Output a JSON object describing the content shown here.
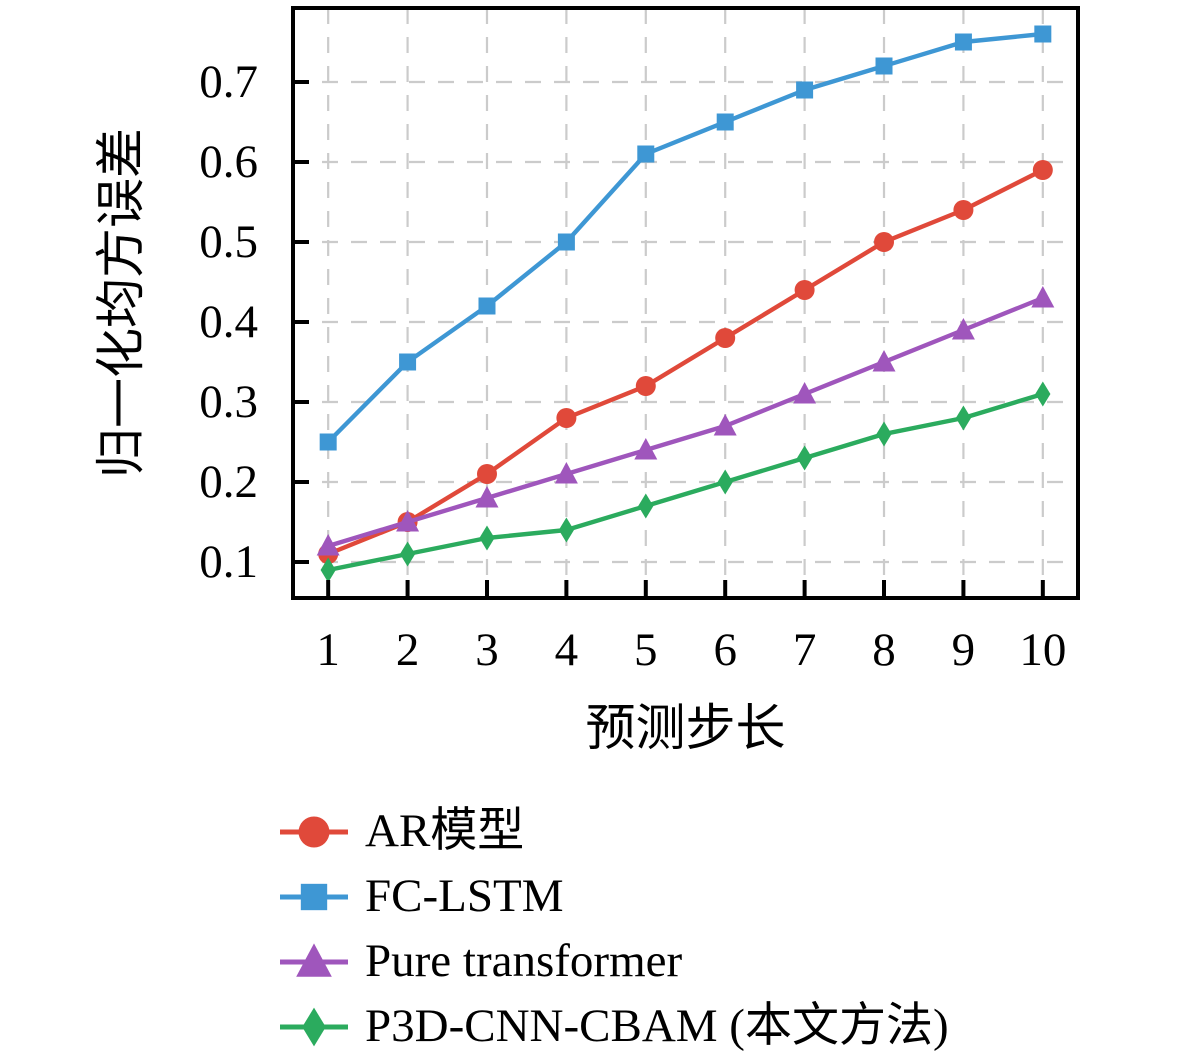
{
  "chart_data": {
    "type": "line",
    "title": "",
    "xlabel": "预测步长",
    "ylabel": "归一化均方误差",
    "x": [
      1,
      2,
      3,
      4,
      5,
      6,
      7,
      8,
      9,
      10
    ],
    "x_ticks": [
      1,
      2,
      3,
      4,
      5,
      6,
      7,
      8,
      9,
      10
    ],
    "y_ticks": [
      0.1,
      0.2,
      0.3,
      0.4,
      0.5,
      0.6,
      0.7
    ],
    "xlim": [
      0.557,
      10.443
    ],
    "ylim": [
      0.055,
      0.7925
    ],
    "grid": "dashed",
    "grid_color": "#cbcbcb",
    "spine_color": "#000000",
    "background_color": "#ffffff",
    "legend_position": "below-left",
    "series": [
      {
        "name": "AR模型",
        "marker": "circle",
        "color": "#e0493a",
        "values": [
          0.11,
          0.15,
          0.21,
          0.28,
          0.32,
          0.38,
          0.44,
          0.5,
          0.54,
          0.59
        ]
      },
      {
        "name": "FC-LSTM",
        "marker": "square",
        "color": "#3e97d4",
        "values": [
          0.25,
          0.35,
          0.42,
          0.5,
          0.61,
          0.65,
          0.69,
          0.72,
          0.75,
          0.76
        ]
      },
      {
        "name": "Pure transformer",
        "marker": "triangle",
        "color": "#9f56bc",
        "values": [
          0.12,
          0.15,
          0.18,
          0.21,
          0.24,
          0.27,
          0.31,
          0.35,
          0.39,
          0.43
        ]
      },
      {
        "name": "P3D-CNN-CBAM (本文方法)",
        "marker": "diamond",
        "color": "#2bab5e",
        "values": [
          0.09,
          0.11,
          0.13,
          0.14,
          0.17,
          0.2,
          0.23,
          0.26,
          0.28,
          0.31
        ]
      }
    ]
  }
}
